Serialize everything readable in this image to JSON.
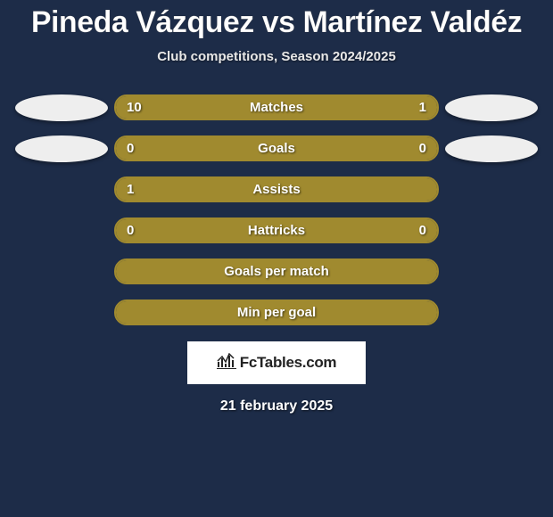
{
  "header": {
    "title": "Pineda Vázquez vs Martínez Valdéz",
    "subtitle": "Club competitions, Season 2024/2025"
  },
  "colors": {
    "background": "#1d2c48",
    "bar_fill": "#a08a2f",
    "bar_border": "#a08a2f",
    "bar_empty": "transparent",
    "avatar": "#eeeeee",
    "text": "#ffffff",
    "logo_bg": "#ffffff",
    "logo_text": "#222222"
  },
  "stats": [
    {
      "label": "Matches",
      "left_val": "10",
      "right_val": "1",
      "left_pct": 73,
      "right_pct": 27,
      "show_left_avatar": true,
      "show_right_avatar": true
    },
    {
      "label": "Goals",
      "left_val": "0",
      "right_val": "0",
      "left_pct": 100,
      "right_pct": 0,
      "show_left_avatar": true,
      "show_right_avatar": true
    },
    {
      "label": "Assists",
      "left_val": "1",
      "right_val": "",
      "left_pct": 100,
      "right_pct": 0,
      "show_left_avatar": false,
      "show_right_avatar": false
    },
    {
      "label": "Hattricks",
      "left_val": "0",
      "right_val": "0",
      "left_pct": 100,
      "right_pct": 0,
      "show_left_avatar": false,
      "show_right_avatar": false
    },
    {
      "label": "Goals per match",
      "left_val": "",
      "right_val": "",
      "left_pct": 100,
      "right_pct": 0,
      "show_left_avatar": false,
      "show_right_avatar": false
    },
    {
      "label": "Min per goal",
      "left_val": "",
      "right_val": "",
      "left_pct": 100,
      "right_pct": 0,
      "show_left_avatar": false,
      "show_right_avatar": false
    }
  ],
  "footer": {
    "logo_text": "FcTables.com",
    "date": "21 february 2025"
  }
}
